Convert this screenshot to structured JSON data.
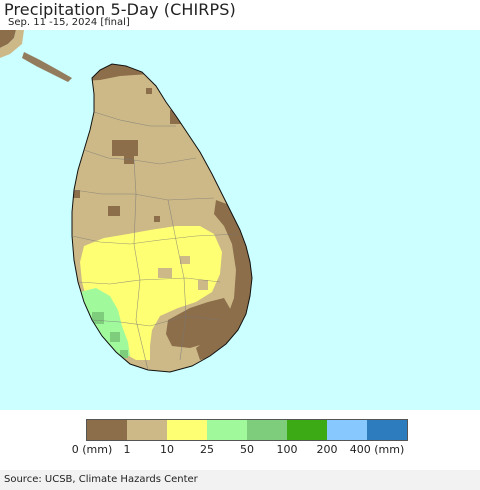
{
  "header": {
    "title": "Precipitation 5-Day (CHIRPS)",
    "subtitle": "Sep. 11 -15, 2024 [final]"
  },
  "map": {
    "ocean_color": "#ccffff",
    "class_colors": {
      "lt1": "#8c6e4b",
      "1to10": "#cdb987",
      "10to25": "#ffff73",
      "25to50": "#a0fa9b",
      "50to100": "#7dcd7d",
      "100to200": "#3caa14",
      "200to400": "#87c8ff",
      "gt400": "#2d7dbe"
    }
  },
  "legend": {
    "swatches": [
      {
        "color": "#8c6e4b"
      },
      {
        "color": "#cdb987"
      },
      {
        "color": "#ffff73"
      },
      {
        "color": "#a0fa9b"
      },
      {
        "color": "#7dcd7d"
      },
      {
        "color": "#3caa14"
      },
      {
        "color": "#87c8ff"
      },
      {
        "color": "#2d7dbe"
      }
    ],
    "labels": [
      "0 (mm)",
      "1",
      "10",
      "25",
      "50",
      "100",
      "200",
      "400 (mm)"
    ]
  },
  "footer": {
    "source": "Source: UCSB, Climate Hazards Center"
  }
}
